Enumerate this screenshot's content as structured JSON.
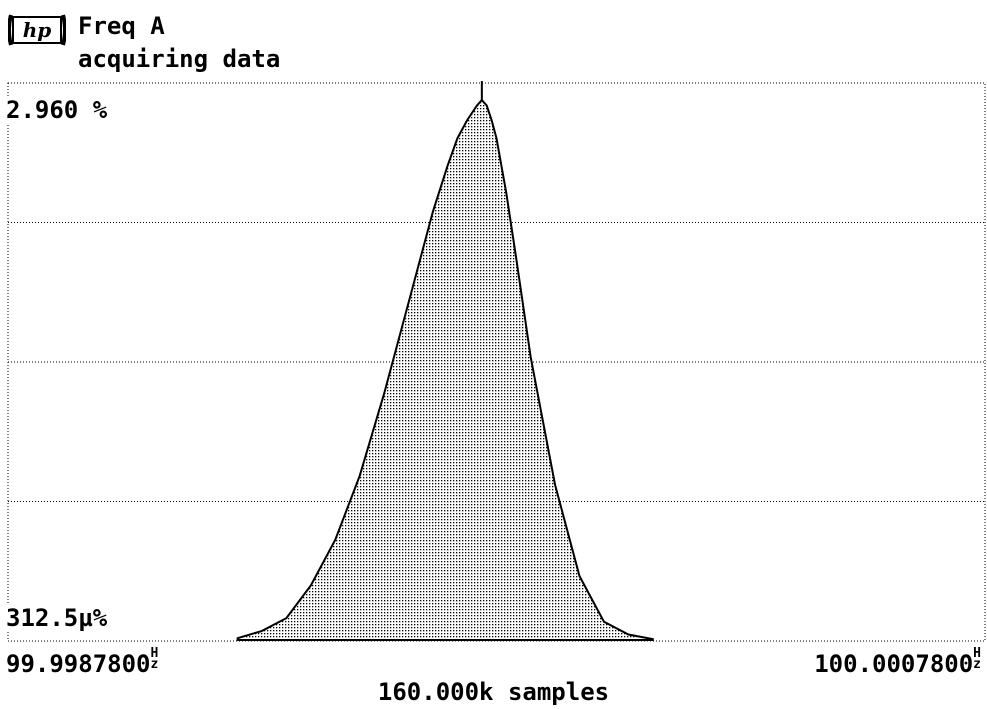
{
  "header": {
    "logo_text": "hp",
    "title": "Freq A",
    "status": "acquiring data"
  },
  "colors": {
    "foreground": "#000000",
    "background": "#ffffff"
  },
  "chart_data": {
    "type": "area",
    "title": "Freq A",
    "subtitle": "acquiring data",
    "ylim_label_max": "2.960 %",
    "ylim_label_min": "312.5µ%",
    "ylim": [
      0.0003125,
      2.96
    ],
    "y_unit": "%",
    "xlim": [
      99.99878,
      100.00078
    ],
    "x_unit": "Hz",
    "xlabel_min": "99.9987800",
    "xlabel_max": "100.0007800",
    "x_unit_top": "H",
    "x_unit_bottom": "z",
    "footer": "160.000k samples",
    "grid": true,
    "series": [
      {
        "x": [
          99.99925,
          99.9993,
          99.99935,
          99.9994,
          99.99945,
          99.9995,
          99.99955,
          99.9996,
          99.99965,
          99.99968,
          99.9997,
          99.99972,
          99.99974,
          99.99975,
          99.99976,
          99.99977,
          99.99978,
          99.9998,
          99.99982,
          99.99985,
          99.9999,
          99.99995,
          100.0,
          100.00005,
          100.0001
        ],
        "y": [
          0.01,
          0.05,
          0.12,
          0.3,
          0.55,
          0.9,
          1.35,
          1.85,
          2.35,
          2.6,
          2.75,
          2.85,
          2.93,
          2.96,
          2.93,
          2.85,
          2.75,
          2.45,
          2.1,
          1.55,
          0.85,
          0.35,
          0.1,
          0.03,
          0.005
        ]
      }
    ]
  }
}
